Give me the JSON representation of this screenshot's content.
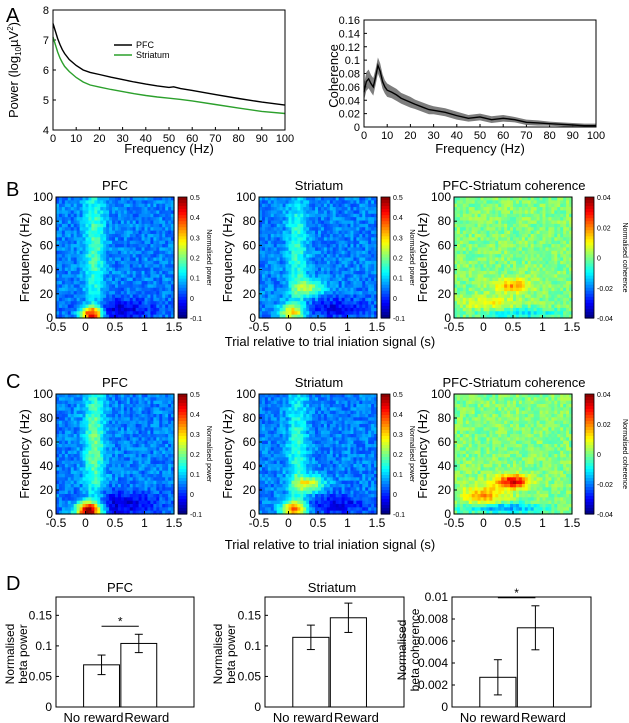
{
  "panel_letters": [
    "A",
    "B",
    "C",
    "D"
  ],
  "heatmap_common": {
    "x_ticks": [
      "-0.5",
      "0",
      "0.5",
      "1",
      "1.5"
    ],
    "y_ticks": [
      "0",
      "20",
      "40",
      "60",
      "80",
      "100"
    ],
    "ylabel": "Frequency (Hz)",
    "shared_xlabel": "Trial relative to trial iniation signal (s)",
    "power_cbar_ticks": [
      "0.5",
      "0.4",
      "0.3",
      "0.2",
      "0.1",
      "0",
      "-0.1"
    ],
    "power_cbar_label": "Normalised power",
    "coh_cbar_ticks": [
      "0.04",
      "0.02",
      "0",
      "-0.02",
      "-0.04"
    ],
    "coh_cbar_label": "Normalised coherence"
  },
  "chart_data": [
    {
      "id": "A-power",
      "panel": "A",
      "type": "line",
      "title": "",
      "xlabel": "Frequency (Hz)",
      "ylabel": "Power (log10µV²)",
      "ylabel_text": "Power (log",
      "ylabel_sub": "10",
      "ylabel_unit": "µV",
      "ylabel_sup": "2",
      "ylabel_close": ")",
      "xlim": [
        0,
        100
      ],
      "ylim": [
        4,
        8
      ],
      "x_ticks": [
        "0",
        "10",
        "20",
        "30",
        "40",
        "50",
        "60",
        "70",
        "80",
        "90",
        "100"
      ],
      "y_ticks": [
        "4",
        "5",
        "6",
        "7",
        "8"
      ],
      "legend_position": "top-center",
      "series": [
        {
          "name": "PFC",
          "color": "#000000",
          "x": [
            0,
            1,
            2,
            3,
            4,
            5,
            7,
            10,
            13,
            16,
            20,
            25,
            30,
            35,
            40,
            45,
            50,
            52,
            55,
            60,
            70,
            80,
            90,
            100
          ],
          "y": [
            7.55,
            7.3,
            7.05,
            6.85,
            6.68,
            6.55,
            6.35,
            6.15,
            6.0,
            5.92,
            5.85,
            5.76,
            5.68,
            5.6,
            5.53,
            5.47,
            5.42,
            5.44,
            5.38,
            5.32,
            5.18,
            5.05,
            4.93,
            4.83
          ]
        },
        {
          "name": "Striatum",
          "color": "#2ca02c",
          "x": [
            0,
            1,
            2,
            3,
            4,
            5,
            7,
            10,
            13,
            16,
            20,
            25,
            30,
            35,
            40,
            45,
            50,
            55,
            60,
            70,
            80,
            90,
            100
          ],
          "y": [
            7.1,
            6.85,
            6.6,
            6.4,
            6.25,
            6.12,
            5.95,
            5.75,
            5.6,
            5.5,
            5.43,
            5.35,
            5.28,
            5.21,
            5.15,
            5.1,
            5.06,
            5.02,
            4.97,
            4.85,
            4.73,
            4.62,
            4.55
          ]
        }
      ]
    },
    {
      "id": "A-coherence",
      "panel": "A",
      "type": "line",
      "title": "",
      "xlabel": "Frequency (Hz)",
      "ylabel": "Coherence",
      "xlim": [
        0,
        100
      ],
      "ylim": [
        0,
        0.16
      ],
      "x_ticks": [
        "0",
        "10",
        "20",
        "30",
        "40",
        "50",
        "60",
        "70",
        "80",
        "90",
        "100"
      ],
      "y_ticks": [
        "0",
        "0.02",
        "0.04",
        "0.06",
        "0.08",
        "0.1",
        "0.12",
        "0.14",
        "0.16"
      ],
      "series": [
        {
          "color": "#000000",
          "band_color": "#666666",
          "x": [
            0,
            1,
            2,
            3,
            4,
            5,
            6,
            7,
            8,
            9,
            10,
            12,
            14,
            16,
            18,
            20,
            22,
            25,
            28,
            30,
            35,
            40,
            45,
            50,
            55,
            60,
            65,
            70,
            75,
            80,
            85,
            90,
            95,
            100
          ],
          "y": [
            0.052,
            0.068,
            0.072,
            0.065,
            0.06,
            0.075,
            0.092,
            0.083,
            0.068,
            0.06,
            0.055,
            0.052,
            0.048,
            0.043,
            0.04,
            0.037,
            0.034,
            0.03,
            0.026,
            0.025,
            0.022,
            0.017,
            0.013,
            0.015,
            0.011,
            0.013,
            0.011,
            0.007,
            0.006,
            0.005,
            0.004,
            0.003,
            0.002,
            0.002
          ],
          "err": [
            0.012,
            0.014,
            0.014,
            0.013,
            0.013,
            0.012,
            0.012,
            0.012,
            0.011,
            0.01,
            0.01,
            0.009,
            0.009,
            0.008,
            0.008,
            0.008,
            0.007,
            0.007,
            0.007,
            0.006,
            0.006,
            0.006,
            0.005,
            0.005,
            0.005,
            0.005,
            0.004,
            0.004,
            0.004,
            0.003,
            0.003,
            0.003,
            0.003,
            0.003
          ]
        }
      ]
    },
    {
      "id": "B-PFC",
      "panel": "B",
      "type": "heatmap",
      "title": "PFC",
      "colorbar": "power",
      "zlim": [
        -0.1,
        0.5
      ],
      "xlim": [
        -0.5,
        1.5
      ],
      "ylim": [
        0,
        100
      ],
      "features": [
        {
          "t": 0.1,
          "f": 3,
          "st": 0.14,
          "sf": 5,
          "amp": 0.4
        },
        {
          "t": 0.15,
          "f": 60,
          "st": 0.12,
          "sf": 40,
          "amp": 0.12
        },
        {
          "t": 0.5,
          "f": 6,
          "st": 0.45,
          "sf": 7,
          "amp": -0.1
        }
      ]
    },
    {
      "id": "B-Striatum",
      "panel": "B",
      "type": "heatmap",
      "title": "Striatum",
      "colorbar": "power",
      "zlim": [
        -0.1,
        0.5
      ],
      "xlim": [
        -0.5,
        1.5
      ],
      "ylim": [
        0,
        100
      ],
      "features": [
        {
          "t": 0.05,
          "f": 5,
          "st": 0.15,
          "sf": 5,
          "amp": 0.22
        },
        {
          "t": 0.35,
          "f": 25,
          "st": 0.18,
          "sf": 5,
          "amp": 0.15
        },
        {
          "t": 0.15,
          "f": 55,
          "st": 0.12,
          "sf": 40,
          "amp": 0.1
        },
        {
          "t": 0.8,
          "f": 8,
          "st": 0.4,
          "sf": 6,
          "amp": -0.08
        }
      ]
    },
    {
      "id": "B-Coherence",
      "panel": "B",
      "type": "heatmap",
      "title": "PFC-Striatum coherence",
      "colorbar": "coherence",
      "zlim": [
        -0.04,
        0.04
      ],
      "xlim": [
        -0.5,
        1.5
      ],
      "ylim": [
        0,
        100
      ],
      "features": [
        {
          "t": 0.5,
          "f": 27,
          "st": 0.22,
          "sf": 4,
          "amp": 0.018
        },
        {
          "t": 0.1,
          "f": 12,
          "st": 0.3,
          "sf": 4,
          "amp": 0.01
        },
        {
          "t": 0.6,
          "f": 4,
          "st": 0.5,
          "sf": 3,
          "amp": -0.012
        }
      ]
    },
    {
      "id": "C-PFC",
      "panel": "C",
      "type": "heatmap",
      "title": "PFC",
      "colorbar": "power",
      "zlim": [
        -0.1,
        0.5
      ],
      "xlim": [
        -0.5,
        1.5
      ],
      "ylim": [
        0,
        100
      ],
      "features": [
        {
          "t": 0.05,
          "f": 3,
          "st": 0.15,
          "sf": 5,
          "amp": 0.45
        },
        {
          "t": 0.15,
          "f": 60,
          "st": 0.12,
          "sf": 40,
          "amp": 0.14
        },
        {
          "t": 0.6,
          "f": 8,
          "st": 0.45,
          "sf": 7,
          "amp": -0.1
        }
      ]
    },
    {
      "id": "C-Striatum",
      "panel": "C",
      "type": "heatmap",
      "title": "Striatum",
      "colorbar": "power",
      "zlim": [
        -0.1,
        0.5
      ],
      "xlim": [
        -0.5,
        1.5
      ],
      "ylim": [
        0,
        100
      ],
      "features": [
        {
          "t": 0.1,
          "f": 4,
          "st": 0.15,
          "sf": 5,
          "amp": 0.3
        },
        {
          "t": 0.35,
          "f": 25,
          "st": 0.18,
          "sf": 5,
          "amp": 0.2
        },
        {
          "t": 0.15,
          "f": 55,
          "st": 0.12,
          "sf": 40,
          "amp": 0.1
        },
        {
          "t": 0.8,
          "f": 8,
          "st": 0.4,
          "sf": 6,
          "amp": -0.08
        }
      ]
    },
    {
      "id": "C-Coherence",
      "panel": "C",
      "type": "heatmap",
      "title": "PFC-Striatum coherence",
      "colorbar": "coherence",
      "zlim": [
        -0.04,
        0.04
      ],
      "xlim": [
        -0.5,
        1.5
      ],
      "ylim": [
        0,
        100
      ],
      "features": [
        {
          "t": 0.5,
          "f": 27,
          "st": 0.2,
          "sf": 4,
          "amp": 0.032
        },
        {
          "t": 0.0,
          "f": 15,
          "st": 0.25,
          "sf": 6,
          "amp": 0.018
        },
        {
          "t": 0.3,
          "f": 5,
          "st": 0.5,
          "sf": 3,
          "amp": -0.02
        }
      ]
    },
    {
      "id": "D-PFC",
      "panel": "D",
      "type": "bar",
      "title": "PFC",
      "ylabel_lines": [
        "Normalised",
        "beta power"
      ],
      "categories": [
        "No reward",
        "Reward"
      ],
      "values": [
        0.069,
        0.104
      ],
      "errors": [
        0.016,
        0.015
      ],
      "ylim": [
        0,
        0.18
      ],
      "y_ticks": [
        "0",
        "0.05",
        "0.1",
        "0.15"
      ],
      "significance": "*"
    },
    {
      "id": "D-Striatum",
      "panel": "D",
      "type": "bar",
      "title": "Striatum",
      "ylabel_lines": [
        "Normalised",
        "beta power"
      ],
      "categories": [
        "No reward",
        "Reward"
      ],
      "values": [
        0.114,
        0.146
      ],
      "errors": [
        0.02,
        0.024
      ],
      "ylim": [
        0,
        0.18
      ],
      "y_ticks": [
        "0",
        "0.05",
        "0.1",
        "0.15"
      ]
    },
    {
      "id": "D-Coherence",
      "panel": "D",
      "type": "bar",
      "title": "",
      "ylabel_lines": [
        "Normalised",
        "beta coherence"
      ],
      "categories": [
        "No reward",
        "Reward"
      ],
      "values": [
        0.0027,
        0.0072
      ],
      "errors": [
        0.0016,
        0.002
      ],
      "ylim": [
        0,
        0.01
      ],
      "y_ticks": [
        "0",
        "0.002",
        "0.004",
        "0.006",
        "0.008",
        "0.01"
      ],
      "significance": "*"
    }
  ]
}
